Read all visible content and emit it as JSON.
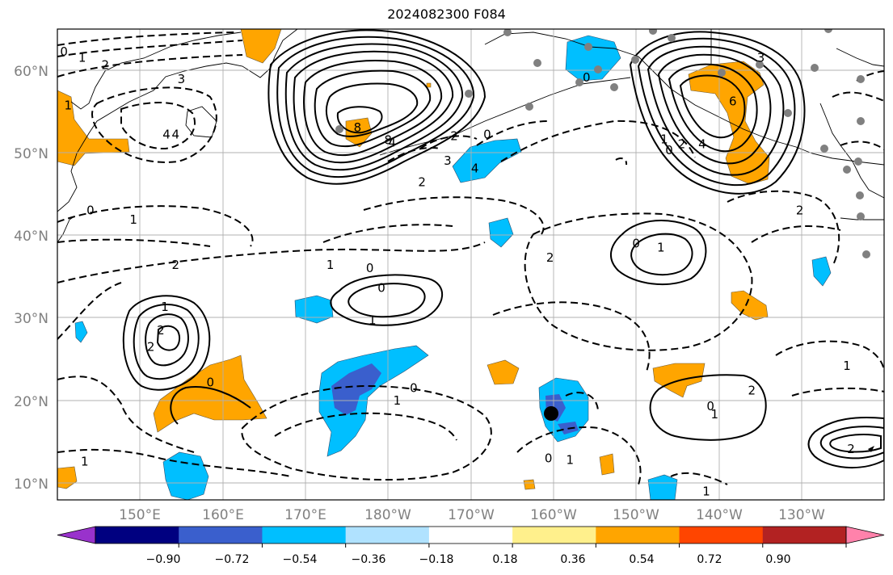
{
  "title": "2024082300 F084",
  "map": {
    "lat_labels": [
      "60°N",
      "50°N",
      "40°N",
      "30°N",
      "20°N",
      "10°N"
    ],
    "lon_labels": [
      "150°E",
      "160°E",
      "170°E",
      "180°W",
      "170°W",
      "160°W",
      "150°W",
      "140°W",
      "130°W"
    ],
    "lat_range": [
      8,
      65
    ],
    "lon_range": [
      140,
      240
    ],
    "grid": true
  },
  "colorbar": {
    "ticks": [
      "−0.90",
      "−0.72",
      "−0.54",
      "−0.36",
      "−0.18",
      "0.18",
      "0.36",
      "0.54",
      "0.72",
      "0.90"
    ],
    "colors": [
      "#9932cc",
      "#000080",
      "#3a5fcd",
      "#00bfff",
      "#b0e2ff",
      "#ffffff",
      "#fff08c",
      "#ffa500",
      "#ff4500",
      "#b22222",
      "#ff82ab"
    ],
    "extend": "both"
  },
  "contour_labels": [
    {
      "text": "0",
      "lat": 62.2,
      "lon": 140.8
    },
    {
      "text": "1",
      "lat": 61.5,
      "lon": 143
    },
    {
      "text": "2",
      "lat": 60.6,
      "lon": 145.8
    },
    {
      "text": "3",
      "lat": 58.9,
      "lon": 155
    },
    {
      "text": "4",
      "lat": 52.2,
      "lon": 153.2
    },
    {
      "text": "1",
      "lat": 55.7,
      "lon": 141.3
    },
    {
      "text": "0",
      "lat": 43,
      "lon": 144
    },
    {
      "text": "1",
      "lat": 41.9,
      "lon": 149.2
    },
    {
      "text": "2",
      "lat": 36.4,
      "lon": 154.3
    },
    {
      "text": "1",
      "lat": 36.4,
      "lon": 173
    },
    {
      "text": "0",
      "lat": 36,
      "lon": 177.8
    },
    {
      "text": "0",
      "lat": 33.6,
      "lon": 179.2
    },
    {
      "text": "1",
      "lat": 29.7,
      "lon": 178.1
    },
    {
      "text": "2",
      "lat": 37.3,
      "lon": 199.6
    },
    {
      "text": "1",
      "lat": 31.3,
      "lon": 153
    },
    {
      "text": "2",
      "lat": 28.5,
      "lon": 152.5
    },
    {
      "text": "2",
      "lat": 26.5,
      "lon": 151.3
    },
    {
      "text": "0",
      "lat": 22.2,
      "lon": 158.5
    },
    {
      "text": "0",
      "lat": 21.5,
      "lon": 183.1
    },
    {
      "text": "1",
      "lat": 20,
      "lon": 181.1
    },
    {
      "text": "4",
      "lat": 52.2,
      "lon": 154.3
    },
    {
      "text": "8",
      "lat": 53,
      "lon": 176.3
    },
    {
      "text": "8",
      "lat": 51.5,
      "lon": 180
    },
    {
      "text": "4",
      "lat": 51.2,
      "lon": 180.5
    },
    {
      "text": "2",
      "lat": 52,
      "lon": 188
    },
    {
      "text": "0",
      "lat": 52.2,
      "lon": 192
    },
    {
      "text": "3",
      "lat": 49,
      "lon": 187.2
    },
    {
      "text": "4",
      "lat": 48.1,
      "lon": 190.5
    },
    {
      "text": "2",
      "lat": 46.4,
      "lon": 184.1
    },
    {
      "text": "0",
      "lat": 59.1,
      "lon": 204
    },
    {
      "text": "3",
      "lat": 61.5,
      "lon": 225.1
    },
    {
      "text": "6",
      "lat": 56.2,
      "lon": 221.7
    },
    {
      "text": "1",
      "lat": 51.6,
      "lon": 213.4
    },
    {
      "text": "0",
      "lat": 50.3,
      "lon": 214
    },
    {
      "text": "2",
      "lat": 51,
      "lon": 215.5
    },
    {
      "text": "4",
      "lat": 51,
      "lon": 218
    },
    {
      "text": "2",
      "lat": 43,
      "lon": 229.8
    },
    {
      "text": "2",
      "lat": 21.2,
      "lon": 224
    },
    {
      "text": "1",
      "lat": 24.2,
      "lon": 235.5
    },
    {
      "text": "0",
      "lat": 39,
      "lon": 210
    },
    {
      "text": "1",
      "lat": 38.5,
      "lon": 213
    },
    {
      "text": "0",
      "lat": 19.3,
      "lon": 219
    },
    {
      "text": "1",
      "lat": 18.3,
      "lon": 219.5
    },
    {
      "text": "2",
      "lat": 14.1,
      "lon": 236
    },
    {
      "text": "0",
      "lat": 13,
      "lon": 199.4
    },
    {
      "text": "1",
      "lat": 12.8,
      "lon": 202
    },
    {
      "text": "1",
      "lat": 9,
      "lon": 218.5
    },
    {
      "text": "1",
      "lat": 12.6,
      "lon": 143.3
    }
  ]
}
